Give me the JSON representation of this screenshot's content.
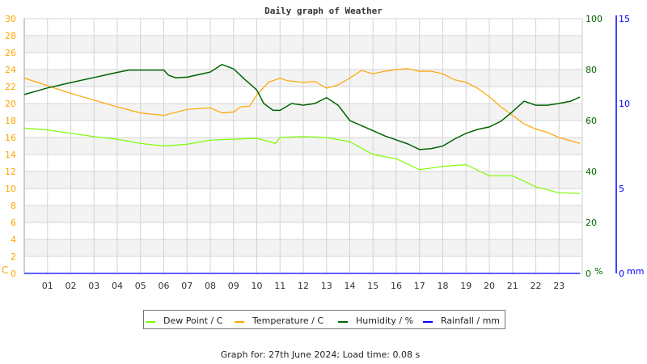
{
  "chart_data": {
    "type": "line",
    "title": "Daily graph of Weather",
    "footer": "Graph for: 27th June 2024; Load time: 0.08 s",
    "x_tick_labels": [
      "01",
      "02",
      "03",
      "04",
      "05",
      "06",
      "07",
      "08",
      "09",
      "10",
      "11",
      "12",
      "13",
      "14",
      "15",
      "16",
      "17",
      "18",
      "19",
      "20",
      "21",
      "22",
      "23"
    ],
    "xlim": [
      0,
      24
    ],
    "grid": true,
    "legend_placement": "bottom",
    "axes": {
      "left": {
        "label": "C",
        "ylim": [
          0,
          30
        ],
        "ticks": [
          "0",
          "2",
          "4",
          "6",
          "8",
          "10",
          "12",
          "14",
          "16",
          "18",
          "20",
          "22",
          "24",
          "26",
          "28",
          "30"
        ],
        "color": "#ffa500"
      },
      "right": {
        "label": "%",
        "ylim": [
          0,
          100
        ],
        "ticks": [
          "0",
          "20",
          "40",
          "60",
          "80",
          "100"
        ],
        "color": "#006400"
      },
      "right2": {
        "label": "mm",
        "ylim": [
          0,
          15
        ],
        "ticks": [
          "0",
          "5",
          "10",
          "15"
        ],
        "color": "#0000ff"
      }
    },
    "series": [
      {
        "name": "Dew Point / C",
        "axis": "left",
        "color": "#7cfc00",
        "x": [
          0,
          1,
          2,
          3,
          4,
          5,
          6,
          7,
          8,
          9,
          10,
          10.8,
          11,
          12,
          13,
          14,
          15,
          16,
          17,
          18,
          19,
          20,
          21,
          22,
          23,
          23.9
        ],
        "y": [
          17.1,
          16.9,
          16.5,
          16.1,
          15.8,
          15.3,
          15.0,
          15.2,
          15.7,
          15.8,
          15.9,
          15.3,
          16.0,
          16.1,
          16.0,
          15.5,
          14.0,
          13.5,
          12.2,
          12.6,
          12.8,
          11.5,
          11.5,
          10.2,
          9.5,
          9.4
        ]
      },
      {
        "name": "Temperature / C",
        "axis": "left",
        "color": "#ffa500",
        "x": [
          0,
          1,
          2,
          3,
          4,
          5,
          6,
          7,
          8,
          8.5,
          9,
          9.3,
          9.7,
          10,
          10.5,
          11,
          11.3,
          12,
          12.5,
          13,
          13.5,
          14,
          14.5,
          15,
          15.5,
          16,
          16.5,
          17,
          17.5,
          18,
          18.5,
          19,
          19.5,
          20,
          20.5,
          21,
          21.5,
          22,
          22.5,
          23,
          23.9
        ],
        "y": [
          23.0,
          22.1,
          21.2,
          20.4,
          19.6,
          18.9,
          18.6,
          19.3,
          19.5,
          18.9,
          19.0,
          19.6,
          19.7,
          21.0,
          22.5,
          23.0,
          22.7,
          22.5,
          22.6,
          21.8,
          22.2,
          23.0,
          23.9,
          23.5,
          23.8,
          24.0,
          24.1,
          23.8,
          23.8,
          23.5,
          22.8,
          22.5,
          21.8,
          20.8,
          19.6,
          18.6,
          17.6,
          17.0,
          16.6,
          16.0,
          15.3
        ]
      },
      {
        "name": "Humidity / %",
        "axis": "right",
        "color": "#006400",
        "x": [
          0,
          1,
          2,
          3,
          4,
          4.5,
          5,
          6,
          6.2,
          6.5,
          7,
          8,
          8.5,
          9,
          9.5,
          10,
          10.3,
          10.7,
          11,
          11.5,
          12,
          12.5,
          13,
          13.5,
          14,
          14.5,
          15,
          15.5,
          16,
          16.5,
          17,
          17.5,
          18,
          18.5,
          19,
          19.5,
          20,
          20.5,
          21,
          21.5,
          22,
          22.5,
          23,
          23.5,
          23.9
        ],
        "y": [
          70.2,
          72.8,
          74.9,
          76.9,
          78.9,
          79.8,
          79.8,
          79.8,
          77.8,
          76.8,
          77,
          79,
          82,
          80.3,
          76,
          72,
          66.7,
          64,
          64,
          66.7,
          66,
          66.7,
          69,
          66,
          60,
          58,
          56,
          54,
          52.4,
          50.8,
          48.6,
          49,
          50,
          52.7,
          55,
          56.5,
          57.5,
          59.7,
          63.5,
          67.6,
          66,
          66,
          66.7,
          67.6,
          69.2
        ]
      },
      {
        "name": "Rainfall / mm",
        "axis": "right2",
        "color": "#0000ff",
        "x": [
          0,
          23.9
        ],
        "y": [
          0,
          0
        ]
      }
    ]
  }
}
